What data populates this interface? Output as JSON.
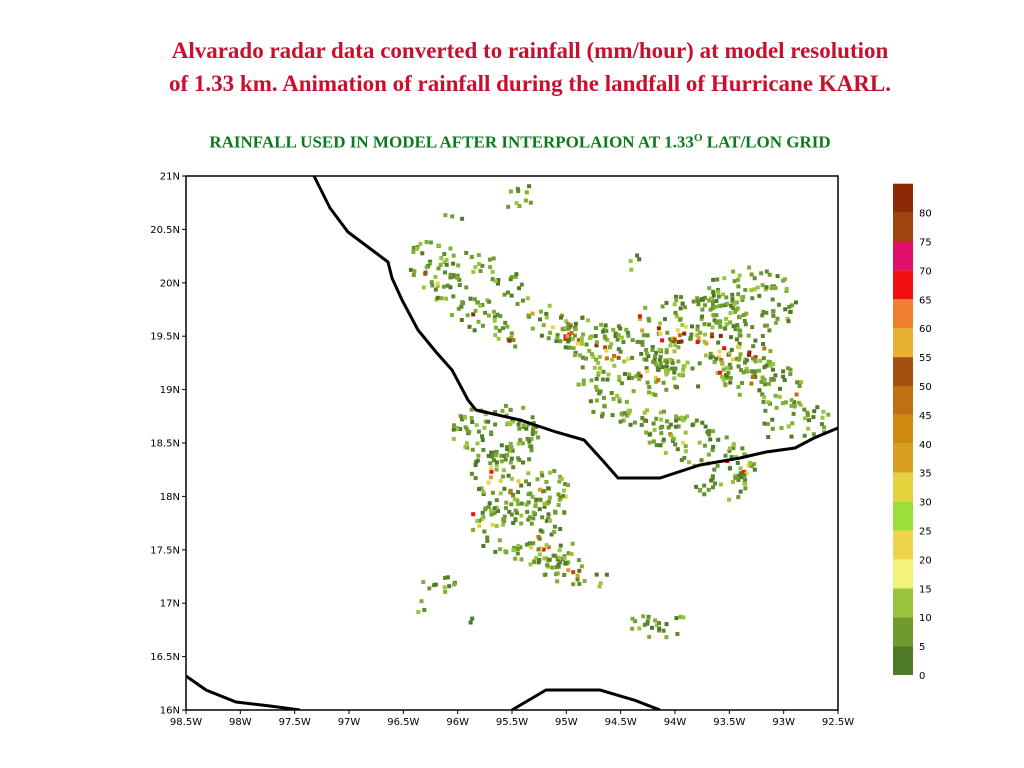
{
  "title": {
    "line1": "Alvarado radar data converted to rainfall (mm/hour) at model resolution",
    "line2": "of 1.33 km. Animation of rainfall during the landfall of Hurricane KARL."
  },
  "subtitle": {
    "text": "RAINFALL USED IN MODEL AFTER INTERPOLAION  AT 1.33",
    "superscript": "O",
    "suffix": " LAT/LON GRID"
  },
  "map": {
    "lat_range": [
      16,
      21
    ],
    "lon_range": [
      -98.5,
      -92.5
    ],
    "lat_ticks": [
      "21N",
      "20.5N",
      "20N",
      "19.5N",
      "19N",
      "18.5N",
      "18N",
      "17.5N",
      "17N",
      "16.5N",
      "16N"
    ],
    "lon_ticks": [
      "98.5W",
      "98W",
      "97.5W",
      "97W",
      "96.5W",
      "96W",
      "95.5W",
      "95W",
      "94.5W",
      "94W",
      "93.5W",
      "93W",
      "92.5W"
    ]
  },
  "legend": {
    "labels": [
      "0",
      "5",
      "10",
      "15",
      "20",
      "25",
      "30",
      "35",
      "40",
      "45",
      "50",
      "55",
      "60",
      "65",
      "70",
      "75",
      "80"
    ],
    "colors": [
      "#4f7a26",
      "#6e9a2e",
      "#9ac43c",
      "#f5f27a",
      "#ecd54a",
      "#9be03a",
      "#e4d23c",
      "#d9a020",
      "#cf8a10",
      "#c07010",
      "#a65010",
      "#e8b030",
      "#f08030",
      "#f01010",
      "#e0106a",
      "#a0440e",
      "#8c2a08"
    ]
  }
}
